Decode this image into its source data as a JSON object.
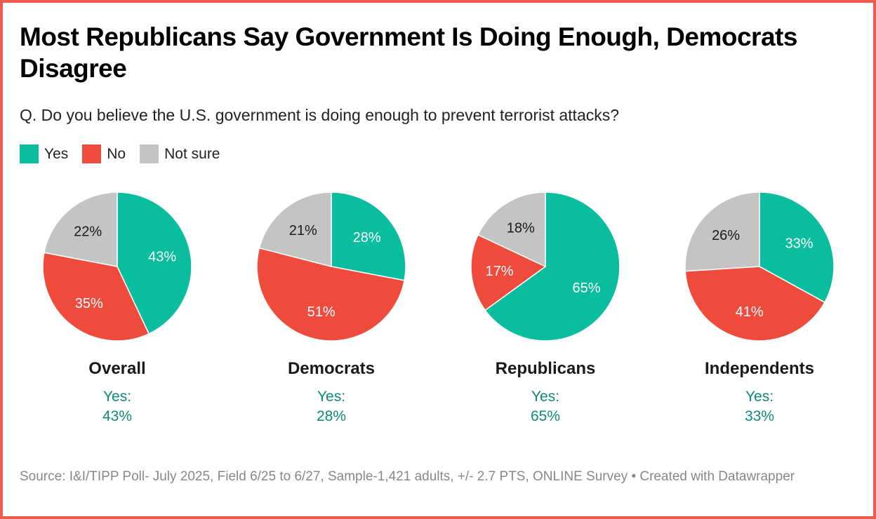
{
  "title": "Most Republicans Say Government Is Doing Enough, Democrats Disagree",
  "subtitle": "Q. Do you believe the U.S. government is doing enough to prevent terrorist attacks?",
  "legend": [
    {
      "label": "Yes",
      "color": "#0bbd9f"
    },
    {
      "label": "No",
      "color": "#ef4b3d"
    },
    {
      "label": "Not sure",
      "color": "#c4c4c4"
    }
  ],
  "colors": {
    "border": "#ef5a4e",
    "yes_caption": "#0f8a74",
    "label_light": "#ffffff",
    "label_dark": "#1a1a1a"
  },
  "chart_data": {
    "type": "pie",
    "title": "Most Republicans Say Government Is Doing Enough, Democrats Disagree",
    "subtitle": "Q. Do you believe the U.S. government is doing enough to prevent terrorist attacks?",
    "categories": [
      "Yes",
      "No",
      "Not sure"
    ],
    "legend_position": "top-left",
    "pies": [
      {
        "name": "Overall",
        "values": [
          43,
          35,
          22
        ],
        "labels": [
          "43%",
          "35%",
          "22%"
        ],
        "caption_line1": "Yes:",
        "caption_line2": "43%"
      },
      {
        "name": "Democrats",
        "values": [
          28,
          51,
          21
        ],
        "labels": [
          "28%",
          "51%",
          "21%"
        ],
        "caption_line1": "Yes:",
        "caption_line2": "28%"
      },
      {
        "name": "Republicans",
        "values": [
          65,
          17,
          18
        ],
        "labels": [
          "65%",
          "17%",
          "18%"
        ],
        "caption_line1": "Yes:",
        "caption_line2": "65%"
      },
      {
        "name": "Independents",
        "values": [
          33,
          41,
          26
        ],
        "labels": [
          "33%",
          "41%",
          "26%"
        ],
        "caption_line1": "Yes:",
        "caption_line2": "33%"
      }
    ]
  },
  "source": "Source: I&I/TIPP Poll- July 2025, Field 6/25 to 6/27, Sample-1,421 adults, +/- 2.7 PTS, ONLINE Survey • Created with Datawrapper"
}
